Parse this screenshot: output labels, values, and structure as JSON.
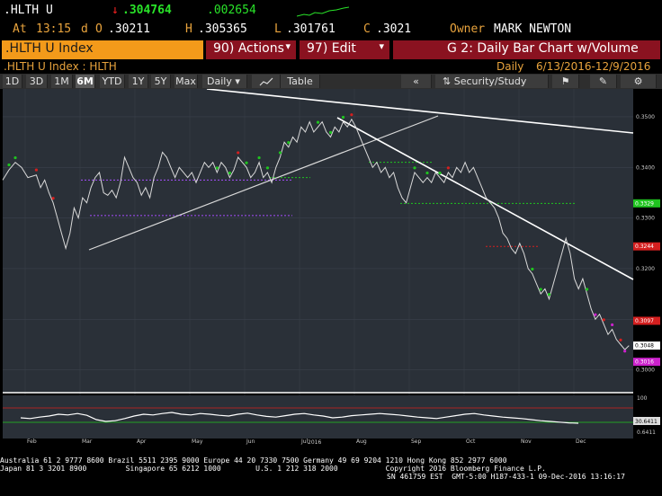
{
  "quote": {
    "ticker": ".HLTH U",
    "arrow": "↓",
    "last": ".304764",
    "change": ".002654",
    "at_label": "At",
    "time": "13:15",
    "d_label": "d",
    "o_label": "O",
    "open": ".30211",
    "h_label": "H",
    "high": ".305365",
    "l_label": "L",
    "low": ".301761",
    "c_label": "C",
    "close": ".3021",
    "owner_label": "Owner",
    "owner": "MARK NEWTON"
  },
  "toolbar": {
    "security_tab": ".HLTH U Index",
    "actions": "90) Actions",
    "edit": "97) Edit",
    "chart_title": "G 2: Daily Bar Chart w/Volume"
  },
  "info": {
    "security": ".HLTH U Index : HLTH",
    "period": "Daily",
    "range": "6/13/2016-12/9/2016"
  },
  "controls": {
    "periods": [
      "1D",
      "3D",
      "1M",
      "6M",
      "YTD",
      "1Y",
      "5Y",
      "Max"
    ],
    "active": "6M",
    "frequency": "Daily",
    "table": "Table",
    "security_study": "Security/Study"
  },
  "chart_data": {
    "type": "line",
    "months": [
      "Feb",
      "Mar",
      "Apr",
      "May",
      "Jun",
      "Jul",
      "Aug",
      "Sep",
      "Oct",
      "Nov",
      "Dec"
    ],
    "year_label": "2016",
    "y_ticks": [
      0.35,
      0.34,
      0.33,
      0.32,
      0.31,
      0.3
    ],
    "y_tick_labels": [
      "0.3500",
      "0.3400",
      "0.3300",
      "0.3200",
      "0.3100",
      "0.3000"
    ],
    "ylim": [
      0.2955,
      0.3555
    ],
    "price_tags": [
      {
        "value": 0.3329,
        "label": "0.3329",
        "color": "#1fc41f"
      },
      {
        "value": 0.3244,
        "label": "0.3244",
        "color": "#d41f1f"
      },
      {
        "value": 0.3097,
        "label": "0.3097",
        "color": "#d41f1f"
      },
      {
        "value": 0.3048,
        "label": "0.3048",
        "color": "#ffffff"
      },
      {
        "value": 0.3016,
        "label": "0.3016",
        "color": "#cc22cc"
      }
    ],
    "price": [
      [
        0,
        0.3375
      ],
      [
        0.3,
        0.3395
      ],
      [
        0.6,
        0.341
      ],
      [
        0.9,
        0.34
      ],
      [
        1.2,
        0.338
      ],
      [
        1.6,
        0.3385
      ],
      [
        1.8,
        0.336
      ],
      [
        2.0,
        0.3375
      ],
      [
        2.2,
        0.335
      ],
      [
        2.4,
        0.333
      ],
      [
        2.6,
        0.33
      ],
      [
        2.8,
        0.327
      ],
      [
        3.0,
        0.324
      ],
      [
        3.2,
        0.327
      ],
      [
        3.4,
        0.332
      ],
      [
        3.6,
        0.33
      ],
      [
        3.8,
        0.334
      ],
      [
        4.0,
        0.333
      ],
      [
        4.2,
        0.336
      ],
      [
        4.4,
        0.338
      ],
      [
        4.6,
        0.339
      ],
      [
        4.8,
        0.335
      ],
      [
        5.0,
        0.3345
      ],
      [
        5.2,
        0.3355
      ],
      [
        5.4,
        0.334
      ],
      [
        5.6,
        0.337
      ],
      [
        5.8,
        0.342
      ],
      [
        6.0,
        0.34
      ],
      [
        6.2,
        0.338
      ],
      [
        6.4,
        0.337
      ],
      [
        6.6,
        0.3345
      ],
      [
        6.8,
        0.336
      ],
      [
        7.0,
        0.334
      ],
      [
        7.2,
        0.338
      ],
      [
        7.4,
        0.34
      ],
      [
        7.6,
        0.343
      ],
      [
        7.8,
        0.342
      ],
      [
        8.0,
        0.34
      ],
      [
        8.2,
        0.338
      ],
      [
        8.4,
        0.34
      ],
      [
        8.6,
        0.339
      ],
      [
        8.8,
        0.338
      ],
      [
        9.0,
        0.339
      ],
      [
        9.2,
        0.337
      ],
      [
        9.4,
        0.339
      ],
      [
        9.6,
        0.341
      ],
      [
        9.8,
        0.34
      ],
      [
        10.0,
        0.341
      ],
      [
        10.2,
        0.339
      ],
      [
        10.4,
        0.341
      ],
      [
        10.6,
        0.34
      ],
      [
        10.8,
        0.338
      ],
      [
        11.0,
        0.3395
      ],
      [
        11.2,
        0.342
      ],
      [
        11.4,
        0.341
      ],
      [
        11.6,
        0.34
      ],
      [
        11.8,
        0.338
      ],
      [
        12.0,
        0.339
      ],
      [
        12.2,
        0.341
      ],
      [
        12.4,
        0.338
      ],
      [
        12.6,
        0.339
      ],
      [
        12.8,
        0.337
      ],
      [
        13.0,
        0.34
      ],
      [
        13.2,
        0.342
      ],
      [
        13.4,
        0.345
      ],
      [
        13.6,
        0.344
      ],
      [
        13.8,
        0.346
      ],
      [
        14.0,
        0.345
      ],
      [
        14.2,
        0.348
      ],
      [
        14.4,
        0.347
      ],
      [
        14.6,
        0.349
      ],
      [
        14.8,
        0.347
      ],
      [
        15.0,
        0.348
      ],
      [
        15.2,
        0.349
      ],
      [
        15.4,
        0.347
      ],
      [
        15.6,
        0.346
      ],
      [
        15.8,
        0.348
      ],
      [
        16.0,
        0.347
      ],
      [
        16.2,
        0.349
      ],
      [
        16.4,
        0.348
      ],
      [
        16.6,
        0.3495
      ],
      [
        16.8,
        0.348
      ],
      [
        17.0,
        0.346
      ],
      [
        17.2,
        0.344
      ],
      [
        17.4,
        0.342
      ],
      [
        17.6,
        0.34
      ],
      [
        17.8,
        0.341
      ],
      [
        18.0,
        0.339
      ],
      [
        18.2,
        0.34
      ],
      [
        18.4,
        0.338
      ],
      [
        18.6,
        0.339
      ],
      [
        18.8,
        0.336
      ],
      [
        19.0,
        0.334
      ],
      [
        19.2,
        0.333
      ],
      [
        19.4,
        0.336
      ],
      [
        19.6,
        0.339
      ],
      [
        19.8,
        0.338
      ],
      [
        20.0,
        0.337
      ],
      [
        20.2,
        0.338
      ],
      [
        20.4,
        0.337
      ],
      [
        20.6,
        0.339
      ],
      [
        20.8,
        0.338
      ],
      [
        21.0,
        0.337
      ],
      [
        21.2,
        0.339
      ],
      [
        21.4,
        0.338
      ],
      [
        21.6,
        0.34
      ],
      [
        21.8,
        0.339
      ],
      [
        22.0,
        0.341
      ],
      [
        22.2,
        0.339
      ],
      [
        22.4,
        0.34
      ],
      [
        22.6,
        0.338
      ],
      [
        22.8,
        0.336
      ],
      [
        23.0,
        0.334
      ],
      [
        23.2,
        0.333
      ],
      [
        23.4,
        0.332
      ],
      [
        23.6,
        0.33
      ],
      [
        23.8,
        0.327
      ],
      [
        24.0,
        0.326
      ],
      [
        24.2,
        0.324
      ],
      [
        24.4,
        0.323
      ],
      [
        24.6,
        0.325
      ],
      [
        24.8,
        0.323
      ],
      [
        25.0,
        0.32
      ],
      [
        25.2,
        0.319
      ],
      [
        25.4,
        0.317
      ],
      [
        25.6,
        0.315
      ],
      [
        25.8,
        0.316
      ],
      [
        26.0,
        0.314
      ],
      [
        26.2,
        0.317
      ],
      [
        26.4,
        0.32
      ],
      [
        26.6,
        0.323
      ],
      [
        26.8,
        0.326
      ],
      [
        27.0,
        0.323
      ],
      [
        27.2,
        0.318
      ],
      [
        27.4,
        0.316
      ],
      [
        27.6,
        0.318
      ],
      [
        27.8,
        0.315
      ],
      [
        28.0,
        0.312
      ],
      [
        28.2,
        0.31
      ],
      [
        28.4,
        0.311
      ],
      [
        28.6,
        0.309
      ],
      [
        28.8,
        0.307
      ],
      [
        29.0,
        0.308
      ],
      [
        29.2,
        0.306
      ],
      [
        29.4,
        0.305
      ],
      [
        29.6,
        0.304
      ],
      [
        29.8,
        0.3048
      ]
    ],
    "x_max": 30,
    "oscillator": {
      "upper_label": "100",
      "level_label": "30.6411",
      "lower_label": "0.6411",
      "values": [
        50,
        48,
        52,
        55,
        60,
        58,
        62,
        57,
        45,
        40,
        42,
        48,
        55,
        60,
        58,
        62,
        65,
        60,
        58,
        62,
        60,
        57,
        55,
        60,
        63,
        58,
        54,
        52,
        56,
        60,
        62,
        58,
        55,
        50,
        52,
        56,
        58,
        60,
        62,
        60,
        58,
        55,
        52,
        50,
        48,
        52,
        56,
        60,
        62,
        58,
        55,
        52,
        50,
        48,
        45,
        42,
        40,
        38,
        36,
        35
      ]
    }
  },
  "footer": {
    "line1": "Australia 61 2 9777 8600 Brazil 5511 2395 9000 Europe 44 20 7330 7500 Germany 49 69 9204 1210 Hong Kong 852 2977 6000",
    "line2": "Japan 81 3 3201 8900         Singapore 65 6212 1000        U.S. 1 212 318 2000           Copyright 2016 Bloomberg Finance L.P.",
    "line3": "SN 461759 EST  GMT-5:00 H187-433-1 09-Dec-2016 13:16:17"
  }
}
